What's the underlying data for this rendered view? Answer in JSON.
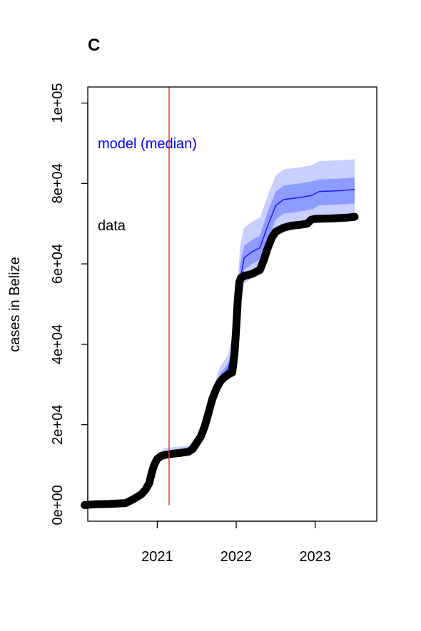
{
  "chart_data": {
    "type": "line",
    "panel_label": "C",
    "ylabel": "cases in Belize",
    "xlabel": "",
    "xlim": [
      2020.12,
      2023.78
    ],
    "ylim": [
      -4000,
      104000
    ],
    "x_ticks": [
      {
        "value": 2021,
        "label": "2021"
      },
      {
        "value": 2022,
        "label": "2022"
      },
      {
        "value": 2023,
        "label": "2023"
      }
    ],
    "y_ticks": [
      {
        "value": 0,
        "label": "0e+00"
      },
      {
        "value": 20000,
        "label": "2e+04"
      },
      {
        "value": 40000,
        "label": "4e+04"
      },
      {
        "value": 60000,
        "label": "6e+04"
      },
      {
        "value": 80000,
        "label": "8e+04"
      },
      {
        "value": 100000,
        "label": "1e+05"
      }
    ],
    "vertical_line": {
      "x": 2021.15,
      "color": "#e8333a"
    },
    "grid": false,
    "annotations": [
      {
        "text": "model (median)",
        "color": "#0000ff"
      },
      {
        "text": "data",
        "color": "#000000"
      }
    ],
    "colors": {
      "data": "#000000",
      "median": "#1a1aff",
      "band_inner": "#8f9cff",
      "band_outer": "#c8d0ff"
    },
    "series": [
      {
        "name": "data",
        "x": [
          2020.08,
          2020.2,
          2020.4,
          2020.6,
          2020.7,
          2020.8,
          2020.85,
          2020.9,
          2020.93,
          2020.96,
          2021.0,
          2021.05,
          2021.1,
          2021.2,
          2021.3,
          2021.4,
          2021.45,
          2021.5,
          2021.55,
          2021.6,
          2021.65,
          2021.7,
          2021.75,
          2021.8,
          2021.85,
          2021.9,
          2021.95,
          2021.98,
          2022.0,
          2022.02,
          2022.04,
          2022.06,
          2022.1,
          2022.2,
          2022.3,
          2022.35,
          2022.4,
          2022.45,
          2022.5,
          2022.6,
          2022.7,
          2022.8,
          2022.9,
          2022.95,
          2023.0,
          2023.2,
          2023.4,
          2023.5
        ],
        "y": [
          0,
          200,
          300,
          500,
          1500,
          2700,
          3800,
          5500,
          8000,
          10000,
          11500,
          12200,
          12500,
          12800,
          13000,
          13300,
          14000,
          15500,
          17000,
          19500,
          23000,
          26500,
          29000,
          30800,
          31800,
          32500,
          33000,
          38000,
          44000,
          51000,
          55500,
          56500,
          57000,
          57500,
          58500,
          61000,
          64000,
          66500,
          68000,
          69000,
          69500,
          69700,
          70000,
          71000,
          71200,
          71300,
          71500,
          71700
        ]
      },
      {
        "name": "model (median)",
        "x": [
          2020.2,
          2020.6,
          2020.8,
          2020.9,
          2020.95,
          2021.0,
          2021.1,
          2021.2,
          2021.4,
          2021.5,
          2021.6,
          2021.7,
          2021.8,
          2021.9,
          2021.98,
          2022.05,
          2022.1,
          2022.2,
          2022.3,
          2022.4,
          2022.5,
          2022.6,
          2022.8,
          2022.95,
          2023.05,
          2023.3,
          2023.5
        ],
        "y": [
          0,
          500,
          2800,
          6000,
          9500,
          11800,
          12800,
          13000,
          13600,
          16000,
          20500,
          26500,
          31500,
          34000,
          40000,
          56000,
          61500,
          63000,
          64000,
          69500,
          74500,
          76000,
          76500,
          77000,
          78000,
          78200,
          78500
        ],
        "lower_inner": [
          0,
          450,
          2600,
          5600,
          9000,
          11300,
          12300,
          12700,
          13300,
          15500,
          19800,
          25500,
          30300,
          32800,
          37500,
          53000,
          58500,
          60000,
          61000,
          66000,
          71000,
          72500,
          73000,
          73500,
          74500,
          74800,
          75000
        ],
        "upper_inner": [
          0,
          550,
          3000,
          6400,
          10000,
          12300,
          13300,
          13400,
          13900,
          16500,
          21300,
          27500,
          32800,
          35300,
          42500,
          60000,
          64500,
          66000,
          67000,
          73000,
          78000,
          79500,
          80000,
          80500,
          81000,
          81200,
          81500
        ],
        "lower_outer": [
          0,
          400,
          2400,
          5200,
          8500,
          10800,
          11800,
          12300,
          13000,
          15000,
          19000,
          24500,
          29300,
          31800,
          35500,
          49000,
          55000,
          56500,
          57500,
          62000,
          67500,
          69000,
          69500,
          70000,
          71500,
          71800,
          72000
        ],
        "upper_outer": [
          0,
          600,
          3300,
          6800,
          10500,
          12800,
          14200,
          14400,
          14700,
          17300,
          22400,
          29000,
          34600,
          37500,
          45500,
          64500,
          69000,
          70500,
          71500,
          77000,
          82000,
          83500,
          84000,
          84500,
          85500,
          85800,
          86000
        ]
      }
    ]
  }
}
